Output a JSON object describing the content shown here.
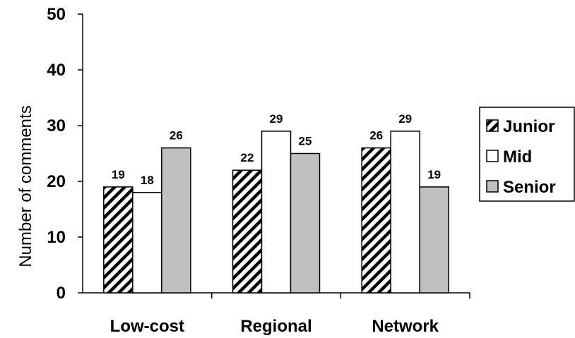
{
  "chart_data": {
    "type": "bar",
    "title": "",
    "xlabel": "",
    "ylabel": "Number of comments",
    "ylim": [
      0,
      50
    ],
    "yticks": [
      0,
      10,
      20,
      30,
      40,
      50
    ],
    "categories": [
      "Low-cost",
      "Regional",
      "Network"
    ],
    "series": [
      {
        "name": "Junior",
        "values": [
          19,
          22,
          26
        ],
        "fill": "hatch"
      },
      {
        "name": "Mid",
        "values": [
          18,
          29,
          29
        ],
        "fill": "#ffffff"
      },
      {
        "name": "Senior",
        "values": [
          26,
          25,
          19
        ],
        "fill": "#c0c0c0"
      }
    ],
    "grid": false,
    "legend_position": "right"
  }
}
